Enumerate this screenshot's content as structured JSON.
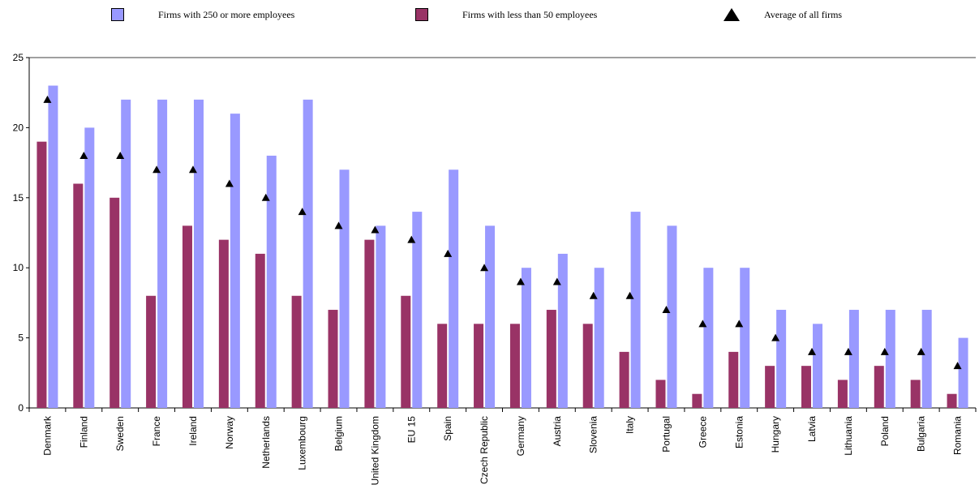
{
  "chart_data": {
    "type": "bar",
    "categories": [
      "Denmark",
      "Finland",
      "Sweden",
      "France",
      "Ireland",
      "Norway",
      "Netherlands",
      "Luxembourg",
      "Belgium",
      "United Kingdom",
      "EU 15",
      "Spain",
      "Czech Republic",
      "Germany",
      "Austria",
      "Slovenia",
      "Italy",
      "Portugal",
      "Greece",
      "Estonia",
      "Hungary",
      "Latvia",
      "Lithuania",
      "Poland",
      "Bulgaria",
      "Romania"
    ],
    "series": [
      {
        "name": "Firms with less than 50 employees",
        "kind": "bar",
        "color": "#993366",
        "values": [
          19,
          16,
          15,
          8,
          13,
          12,
          11,
          8,
          7,
          12,
          8,
          6,
          6,
          6,
          7,
          6,
          4,
          2,
          1,
          4,
          3,
          3,
          2,
          3,
          2,
          1
        ]
      },
      {
        "name": "Firms with 250 or more employees",
        "kind": "bar",
        "color": "#9999ff",
        "values": [
          23,
          20,
          22,
          22,
          22,
          21,
          18,
          22,
          17,
          13,
          14,
          17,
          13,
          10,
          11,
          10,
          14,
          13,
          10,
          10,
          7,
          6,
          7,
          7,
          7,
          5
        ]
      },
      {
        "name": "Average of all firms",
        "kind": "marker",
        "color": "#000000",
        "values": [
          22,
          18,
          18,
          17,
          17,
          16,
          15,
          14,
          13,
          12.7,
          12,
          11,
          10,
          9,
          9,
          8,
          8,
          7,
          6,
          6,
          5,
          4,
          4,
          4,
          4,
          3
        ]
      }
    ],
    "ylim": [
      0,
      25
    ],
    "yticks": [
      0,
      5,
      10,
      15,
      20,
      25
    ],
    "grid": false
  }
}
